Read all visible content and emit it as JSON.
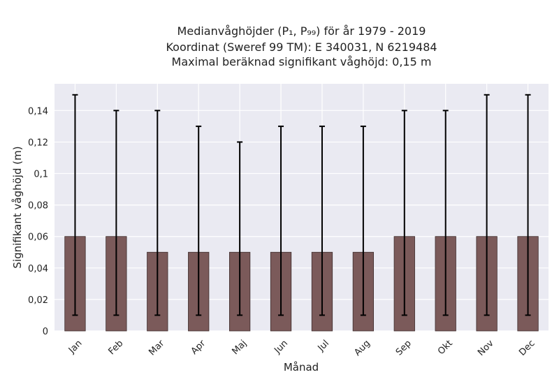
{
  "chart_data": {
    "type": "bar",
    "title_lines": [
      "Medianvåghöjder (P₁, P₉₉) för år 1979 - 2019",
      "Koordinat (Sweref 99 TM): E 340031, N 6219484",
      "Maximal beräknad signifikant våghöjd: 0,15 m"
    ],
    "xlabel": "Månad",
    "ylabel": "Signifikant våghöjd (m)",
    "categories": [
      "Jan",
      "Feb",
      "Mar",
      "Apr",
      "Maj",
      "Jun",
      "Jul",
      "Aug",
      "Sep",
      "Okt",
      "Nov",
      "Dec"
    ],
    "values": [
      0.06,
      0.06,
      0.05,
      0.05,
      0.05,
      0.05,
      0.05,
      0.05,
      0.06,
      0.06,
      0.06,
      0.06
    ],
    "p1": [
      0.01,
      0.01,
      0.01,
      0.01,
      0.01,
      0.01,
      0.01,
      0.01,
      0.01,
      0.01,
      0.01,
      0.01
    ],
    "p99": [
      0.15,
      0.14,
      0.14,
      0.13,
      0.12,
      0.13,
      0.13,
      0.13,
      0.14,
      0.14,
      0.15,
      0.15
    ],
    "ylim": [
      0,
      0.157
    ],
    "yticks": [
      0,
      0.02,
      0.04,
      0.06,
      0.08,
      0.1,
      0.12,
      0.14
    ],
    "ytick_labels": [
      "0",
      "0,02",
      "0,04",
      "0,06",
      "0,08",
      "0,1",
      "0,12",
      "0,14"
    ],
    "grid": true,
    "colors": {
      "bar": "#7b5a5a",
      "bar_edge": "#3d2c2c",
      "errorbar": "#000000",
      "plot_bg": "#eaeaf2",
      "grid": "#ffffff"
    }
  }
}
